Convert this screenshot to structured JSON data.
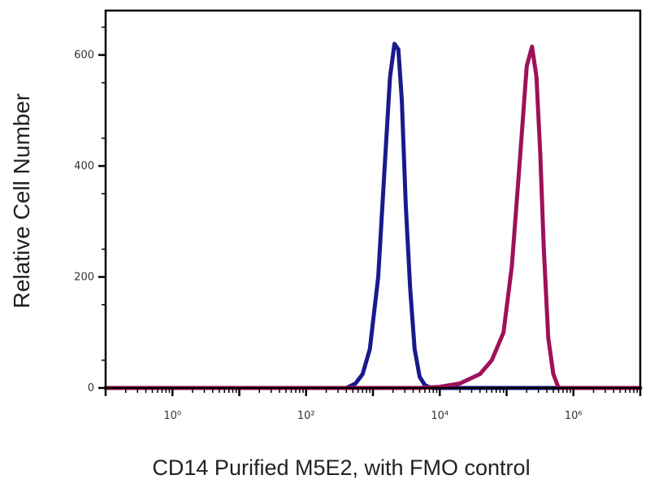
{
  "chart_data": {
    "type": "line",
    "subtype": "flow-cytometry-histogram",
    "title": "",
    "xlabel": "CD14 Purified M5E2, with FMO control",
    "ylabel": "Relative Cell Number",
    "x_scale": "log",
    "xlim": [
      0.1,
      10000000
    ],
    "ylim": [
      0,
      680
    ],
    "y_ticks": [
      0,
      200,
      400,
      600
    ],
    "y_tick_labels": [
      "0",
      "200",
      "400",
      "600"
    ],
    "x_ticks": [
      1,
      100,
      10000,
      1000000
    ],
    "x_tick_labels": [
      "10⁰",
      "10²",
      "10⁴",
      "10⁶"
    ],
    "grid": false,
    "legend": "none",
    "series": [
      {
        "color": "#1a1a8c",
        "x": [
          0.1,
          200,
          400,
          550,
          700,
          900,
          1200,
          1500,
          1800,
          2100,
          2400,
          2700,
          3100,
          3600,
          4200,
          5000,
          6000,
          7500,
          10000000
        ],
        "y": [
          0,
          0,
          0,
          8,
          25,
          70,
          200,
          400,
          560,
          620,
          610,
          520,
          330,
          180,
          70,
          20,
          5,
          0,
          0
        ]
      },
      {
        "color": "#a0105a",
        "x": [
          0.1,
          5000,
          10000,
          20000,
          40000,
          60000,
          90000,
          120000,
          160000,
          200000,
          240000,
          280000,
          320000,
          360000,
          420000,
          500000,
          600000,
          10000000
        ],
        "y": [
          0,
          0,
          2,
          8,
          25,
          50,
          100,
          220,
          420,
          580,
          615,
          560,
          420,
          250,
          90,
          25,
          0,
          0
        ]
      }
    ]
  }
}
